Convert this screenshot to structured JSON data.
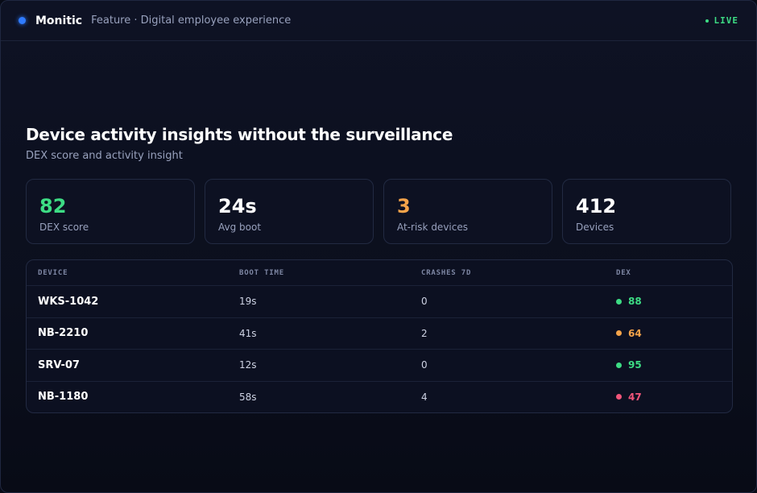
{
  "header": {
    "brand": "Monitic",
    "subtitle": "Feature · Digital employee experience",
    "status": "LIVE",
    "brand_color": "#2f7bff",
    "status_color": "#3ddc84"
  },
  "main": {
    "title": "Device activity insights without the surveillance",
    "subtitle": "DEX score and activity insight"
  },
  "stats": [
    {
      "value": "82",
      "label": "DEX score",
      "color": "#3ddc84"
    },
    {
      "value": "24s",
      "label": "Avg boot",
      "color": "#ffffff"
    },
    {
      "value": "3",
      "label": "At-risk devices",
      "color": "#f5a44a"
    },
    {
      "value": "412",
      "label": "Devices",
      "color": "#ffffff"
    }
  ],
  "table": {
    "columns": [
      "DEVICE",
      "BOOT TIME",
      "CRASHES 7D",
      "DEX"
    ],
    "rows": [
      {
        "device": "WKS-1042",
        "boot": "19s",
        "crashes": "0",
        "dex": "88",
        "color": "#3ddc84"
      },
      {
        "device": "NB-2210",
        "boot": "41s",
        "crashes": "2",
        "dex": "64",
        "color": "#f5a44a"
      },
      {
        "device": "SRV-07",
        "boot": "12s",
        "crashes": "0",
        "dex": "95",
        "color": "#3ddc84"
      },
      {
        "device": "NB-1180",
        "boot": "58s",
        "crashes": "4",
        "dex": "47",
        "color": "#f2557a"
      }
    ]
  }
}
